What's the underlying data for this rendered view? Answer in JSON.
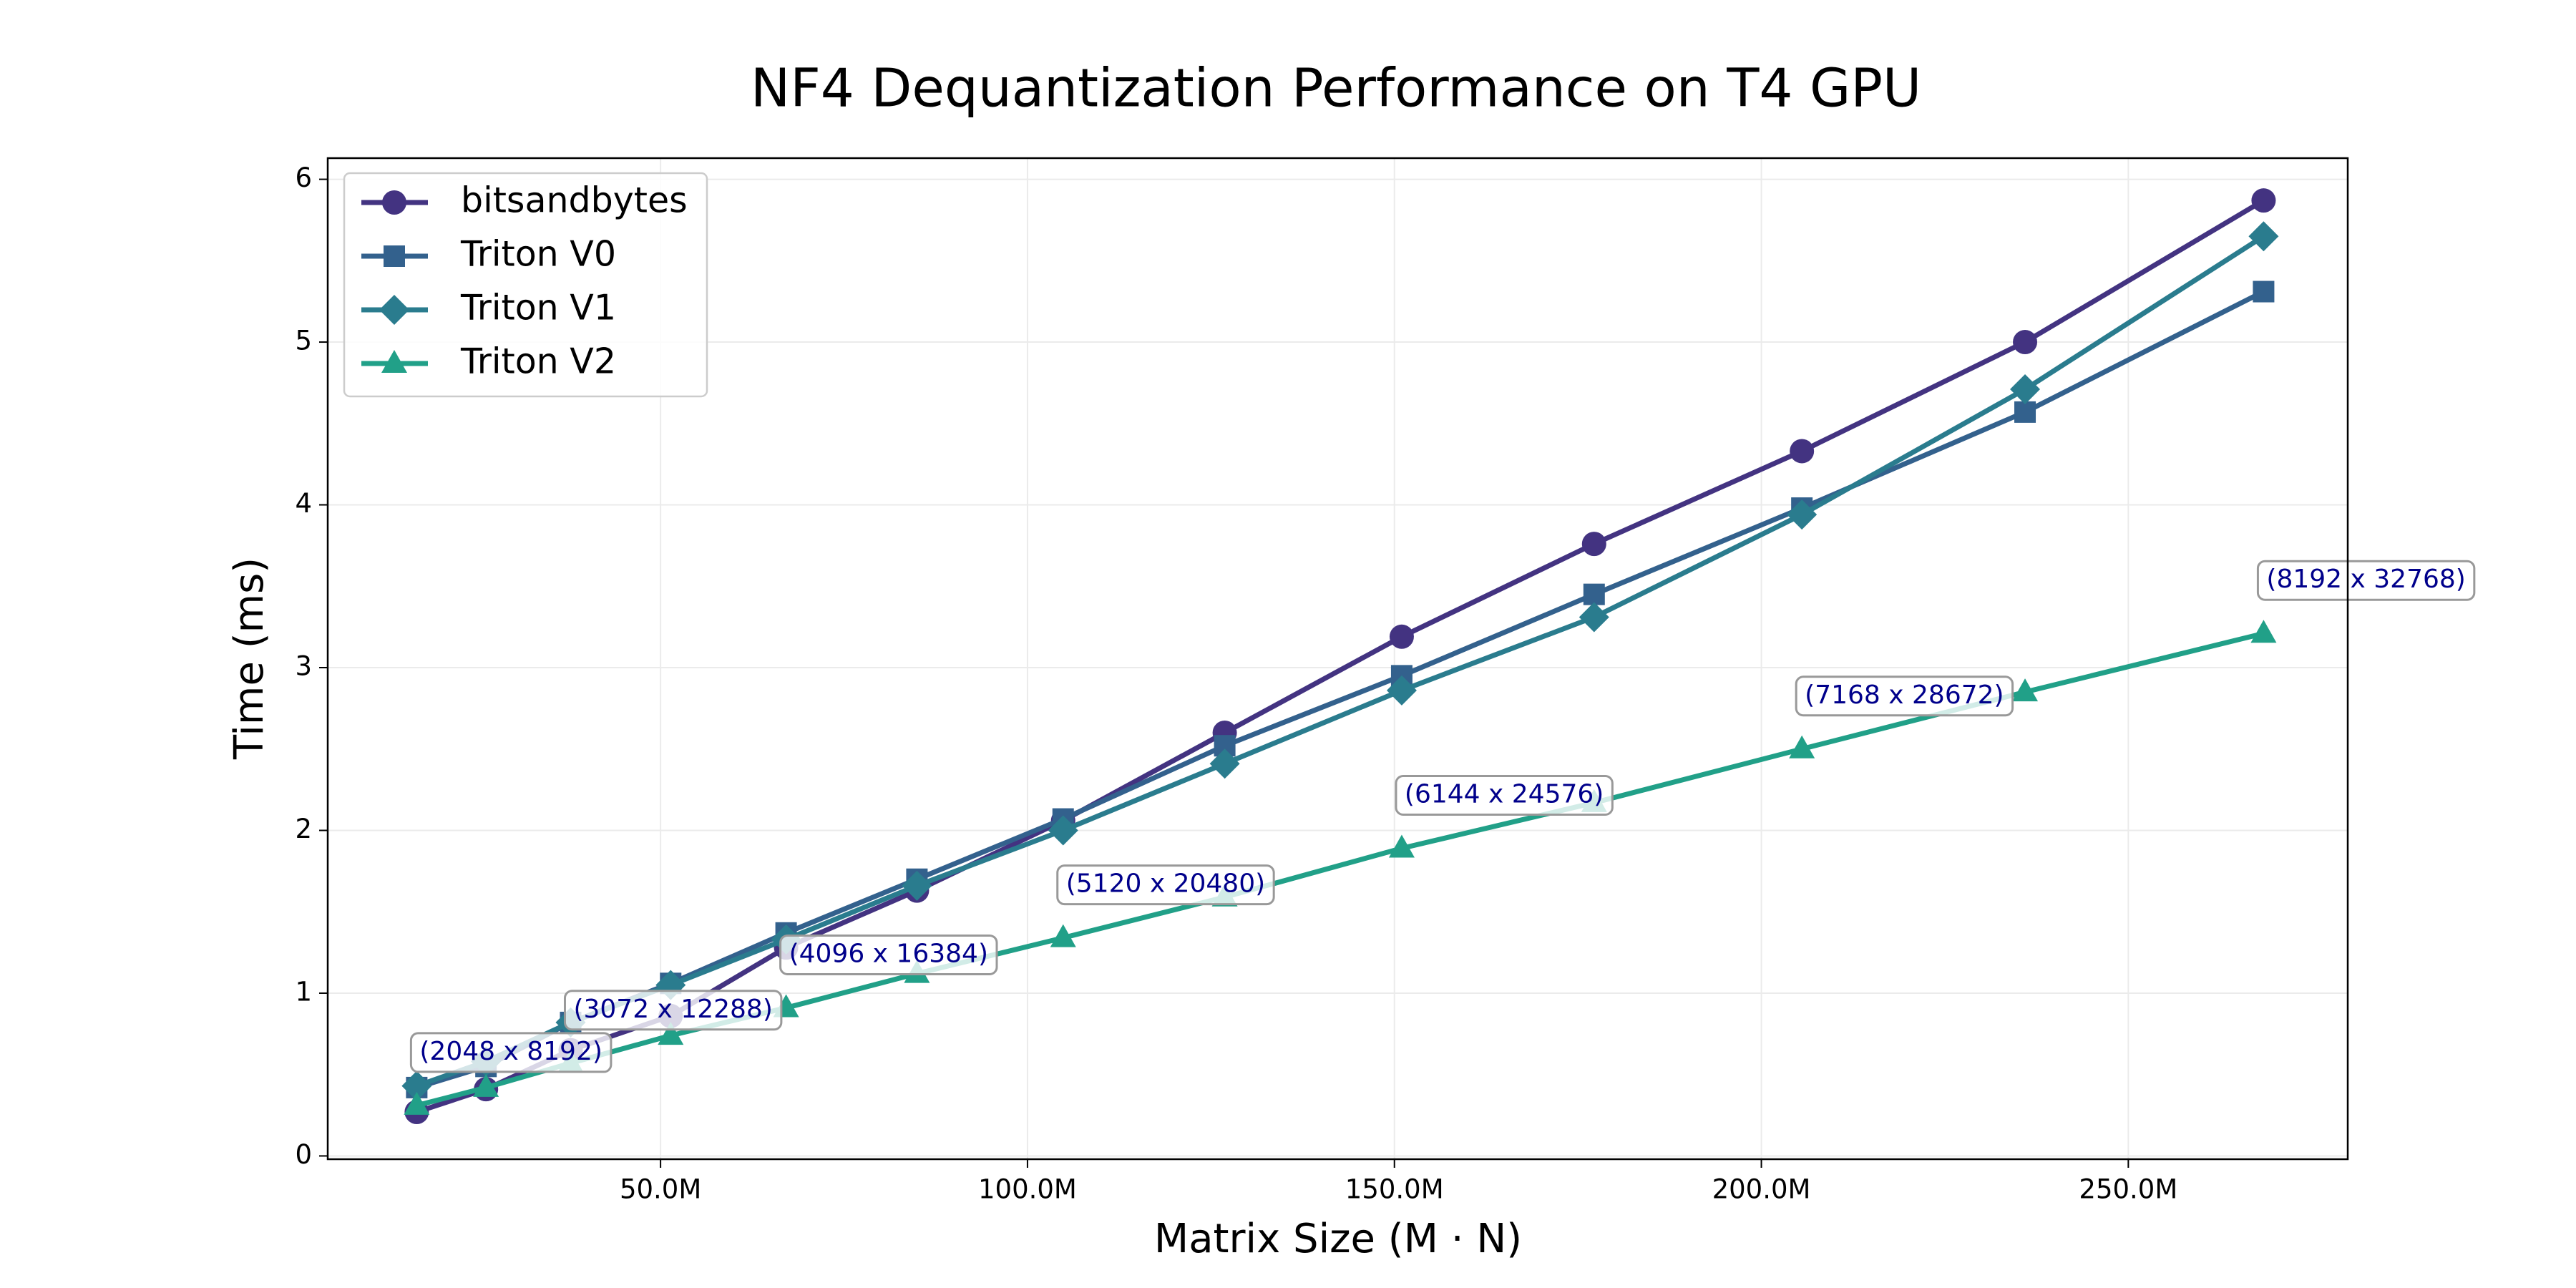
{
  "chart_data": {
    "type": "line",
    "title": "NF4 Dequantization Performance on T4 GPU",
    "xlabel": "Matrix Size (M · N)",
    "ylabel": "Time (ms)",
    "x": [
      16777216,
      26214400,
      37748736,
      51380224,
      67108864,
      84934656,
      104857600,
      126877696,
      150994944,
      177209344,
      205520896,
      235929600,
      268435456
    ],
    "series": [
      {
        "name": "bitsandbytes",
        "color": "#433381",
        "marker": "circle",
        "values": [
          0.27,
          0.41,
          0.65,
          0.86,
          1.28,
          1.63,
          2.06,
          2.6,
          3.19,
          3.76,
          4.33,
          5.0,
          5.87
        ]
      },
      {
        "name": "Triton V0",
        "color": "#33618d",
        "marker": "square",
        "values": [
          0.42,
          0.55,
          0.82,
          1.06,
          1.37,
          1.7,
          2.07,
          2.52,
          2.95,
          3.45,
          3.98,
          4.57,
          5.31
        ]
      },
      {
        "name": "Triton V1",
        "color": "#2a7c8e",
        "marker": "diamond",
        "values": [
          0.43,
          0.58,
          0.82,
          1.05,
          1.33,
          1.66,
          2.0,
          2.41,
          2.86,
          3.31,
          3.94,
          4.71,
          5.65
        ]
      },
      {
        "name": "Triton V2",
        "color": "#21a088",
        "marker": "triangle",
        "values": [
          0.31,
          0.42,
          0.57,
          0.74,
          0.91,
          1.12,
          1.34,
          1.59,
          1.89,
          2.17,
          2.5,
          2.85,
          3.21
        ]
      }
    ],
    "annotations": [
      {
        "text": "(2048 x 8192)",
        "x": 16777216,
        "y": 0.31
      },
      {
        "text": "(3072 x 12288)",
        "x": 37748736,
        "y": 0.57
      },
      {
        "text": "(4096 x 16384)",
        "x": 67108864,
        "y": 0.91
      },
      {
        "text": "(5120 x 20480)",
        "x": 104857600,
        "y": 1.34
      },
      {
        "text": "(6144 x 24576)",
        "x": 150994944,
        "y": 1.89
      },
      {
        "text": "(7168 x 28672)",
        "x": 205520896,
        "y": 2.5
      },
      {
        "text": "(8192 x 32768)",
        "x": 268435456,
        "y": 3.21
      }
    ],
    "xlim": [
      4650000,
      279900000
    ],
    "xticks": [
      {
        "value": 50000000,
        "label": "50.0M"
      },
      {
        "value": 100000000,
        "label": "100.0M"
      },
      {
        "value": 150000000,
        "label": "150.0M"
      },
      {
        "value": 200000000,
        "label": "200.0M"
      },
      {
        "value": 250000000,
        "label": "250.0M"
      }
    ],
    "ylim": [
      -0.02,
      6.13
    ],
    "yticks": [
      0,
      1,
      2,
      3,
      4,
      5,
      6
    ],
    "grid": true,
    "legend": "upper left"
  }
}
